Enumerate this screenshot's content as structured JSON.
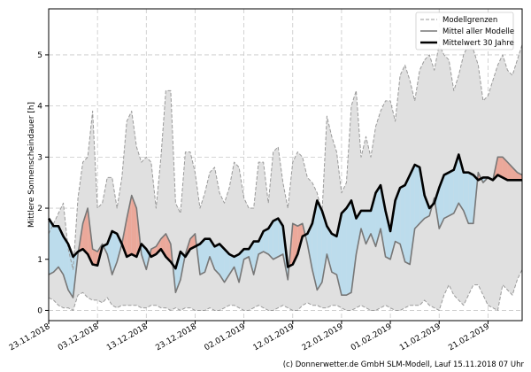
{
  "chart_data": {
    "type": "line",
    "title": "",
    "xlabel": "",
    "ylabel": "Mittlere Sonnenscheindauer [h]",
    "ylim": [
      -0.2,
      5.9
    ],
    "yticks": [
      0,
      1,
      2,
      3,
      4,
      5
    ],
    "grid": true,
    "legend_position": "top-right",
    "x_start_date": "23.11.2018",
    "x_tick_labels": [
      "23.11.2018",
      "03.12.2018",
      "13.12.2018",
      "23.12.2018",
      "02.01.2019",
      "12.01.2019",
      "22.01.2019",
      "01.02.2019",
      "11.02.2019",
      "21.02.2019"
    ],
    "x_tick_days": [
      0,
      10,
      20,
      30,
      40,
      50,
      60,
      70,
      80,
      90
    ],
    "colors": {
      "band_fill": "#e0e0e0",
      "band_line": "#9a9a9a",
      "mean_line": "#777777",
      "clim_line": "#000000",
      "above": "#eba89a",
      "below": "#bcdcec",
      "below_zero_model": "#d9f4fc"
    },
    "legend": [
      {
        "label": "Modellgrenzen",
        "style": "dashed"
      },
      {
        "label": "Mittel aller Modelle",
        "style": "solid-gray"
      },
      {
        "label": "Mittelwert 30 Jahre",
        "style": "solid-black"
      }
    ],
    "series": [
      {
        "name": "Modellgrenzen (oben)",
        "x_days": [
          0,
          1,
          2,
          3,
          4,
          5,
          6,
          7,
          8,
          9,
          10,
          11,
          12,
          13,
          14,
          15,
          16,
          17,
          18,
          19,
          20,
          21,
          22,
          23,
          24,
          25,
          26,
          27,
          28,
          29,
          30,
          31,
          32,
          33,
          34,
          35,
          36,
          37,
          38,
          39,
          40,
          41,
          42,
          43,
          44,
          45,
          46,
          47,
          48,
          49,
          50,
          51,
          52,
          53,
          54,
          55,
          56,
          57,
          58,
          59,
          60,
          61,
          62,
          63,
          64,
          65,
          66,
          67,
          68,
          69,
          70,
          71,
          72,
          73,
          74,
          75,
          76,
          77,
          78,
          79,
          80,
          81,
          82,
          83,
          84,
          85,
          86,
          87,
          88,
          89,
          90,
          91,
          92,
          93,
          94,
          95,
          96,
          97
        ],
        "values": [
          1.5,
          1.7,
          1.9,
          2.1,
          1.2,
          0.8,
          2.2,
          2.9,
          3.0,
          3.9,
          2.0,
          2.1,
          2.6,
          2.6,
          2.0,
          2.6,
          3.7,
          3.9,
          3.2,
          2.9,
          3.0,
          2.9,
          2.0,
          3.0,
          4.3,
          4.3,
          2.1,
          1.9,
          3.1,
          3.1,
          2.7,
          2.0,
          2.3,
          2.7,
          2.8,
          2.3,
          2.1,
          2.4,
          2.9,
          2.8,
          2.2,
          2.0,
          2.0,
          2.9,
          2.9,
          2.1,
          3.1,
          3.2,
          2.5,
          2.0,
          2.9,
          3.1,
          3.0,
          2.6,
          2.5,
          2.3,
          1.9,
          3.8,
          3.4,
          3.1,
          2.3,
          2.5,
          4.0,
          4.3,
          3.0,
          3.4,
          3.0,
          3.6,
          3.9,
          4.1,
          4.1,
          3.7,
          4.6,
          4.8,
          4.5,
          4.1,
          4.7,
          4.9,
          5.0,
          4.7,
          5.2,
          5.0,
          4.9,
          4.3,
          4.6,
          5.0,
          5.2,
          5.1,
          4.8,
          4.1,
          4.2,
          4.5,
          4.8,
          5.0,
          4.7,
          4.6,
          4.9,
          5.2
        ]
      },
      {
        "name": "Modellgrenzen (unten)",
        "x_days": [
          0,
          1,
          2,
          3,
          4,
          5,
          6,
          7,
          8,
          9,
          10,
          11,
          12,
          13,
          14,
          15,
          16,
          17,
          18,
          19,
          20,
          21,
          22,
          23,
          24,
          25,
          26,
          27,
          28,
          29,
          30,
          31,
          32,
          33,
          34,
          35,
          36,
          37,
          38,
          39,
          40,
          41,
          42,
          43,
          44,
          45,
          46,
          47,
          48,
          49,
          50,
          51,
          52,
          53,
          54,
          55,
          56,
          57,
          58,
          59,
          60,
          61,
          62,
          63,
          64,
          65,
          66,
          67,
          68,
          69,
          70,
          71,
          72,
          73,
          74,
          75,
          76,
          77,
          78,
          79,
          80,
          81,
          82,
          83,
          84,
          85,
          86,
          87,
          88,
          89,
          90,
          91,
          92,
          93,
          94,
          95,
          96,
          97
        ],
        "values": [
          0.25,
          0.2,
          0.1,
          0.05,
          0.05,
          0.0,
          0.3,
          0.35,
          0.25,
          0.2,
          0.2,
          0.15,
          0.25,
          0.1,
          0.05,
          0.1,
          0.1,
          0.1,
          0.1,
          0.05,
          0.05,
          0.1,
          0.1,
          0.05,
          0.05,
          0.0,
          0.05,
          0.0,
          0.05,
          0.05,
          0.0,
          0.0,
          0.0,
          0.05,
          0.0,
          0.0,
          0.05,
          0.1,
          0.1,
          0.05,
          0.0,
          0.0,
          0.05,
          0.1,
          0.05,
          0.0,
          0.0,
          0.05,
          0.1,
          0.05,
          0.0,
          0.0,
          0.1,
          0.15,
          0.1,
          0.1,
          0.05,
          0.05,
          0.1,
          0.1,
          0.05,
          0.0,
          0.0,
          0.05,
          0.1,
          0.05,
          0.0,
          0.0,
          0.05,
          0.1,
          0.05,
          0.0,
          0.0,
          0.05,
          0.1,
          0.1,
          0.1,
          0.2,
          0.1,
          0.05,
          0.0,
          0.3,
          0.5,
          0.3,
          0.2,
          0.1,
          0.3,
          0.5,
          0.5,
          0.3,
          0.1,
          0.05,
          0.0,
          0.5,
          0.4,
          0.3,
          0.6,
          0.8
        ]
      },
      {
        "name": "Mittel aller Modelle",
        "x_days": [
          0,
          1,
          2,
          3,
          4,
          5,
          6,
          7,
          8,
          9,
          10,
          11,
          12,
          13,
          14,
          15,
          16,
          17,
          18,
          19,
          20,
          21,
          22,
          23,
          24,
          25,
          26,
          27,
          28,
          29,
          30,
          31,
          32,
          33,
          34,
          35,
          36,
          37,
          38,
          39,
          40,
          41,
          42,
          43,
          44,
          45,
          46,
          47,
          48,
          49,
          50,
          51,
          52,
          53,
          54,
          55,
          56,
          57,
          58,
          59,
          60,
          61,
          62,
          63,
          64,
          65,
          66,
          67,
          68,
          69,
          70,
          71,
          72,
          73,
          74,
          75,
          76,
          77,
          78,
          79,
          80,
          81,
          82,
          83,
          84,
          85,
          86,
          87,
          88,
          89,
          90,
          91,
          92,
          93,
          94,
          95,
          96,
          97
        ],
        "values": [
          0.7,
          0.75,
          0.85,
          0.7,
          0.4,
          0.25,
          1.1,
          1.7,
          2.0,
          1.2,
          1.15,
          1.3,
          1.1,
          0.7,
          0.95,
          1.3,
          1.8,
          2.25,
          2.0,
          1.1,
          0.8,
          1.2,
          1.25,
          1.4,
          1.5,
          1.3,
          0.35,
          0.6,
          1.1,
          1.4,
          1.5,
          0.7,
          0.75,
          1.05,
          0.8,
          0.7,
          0.55,
          0.7,
          0.85,
          0.55,
          1.0,
          1.05,
          0.7,
          1.1,
          1.15,
          1.1,
          1.0,
          1.05,
          1.1,
          0.6,
          1.7,
          1.65,
          1.7,
          1.3,
          0.8,
          0.4,
          0.55,
          1.1,
          0.75,
          0.7,
          0.3,
          0.3,
          0.35,
          1.1,
          1.6,
          1.3,
          1.5,
          1.25,
          1.6,
          1.05,
          1.0,
          1.35,
          1.3,
          0.95,
          0.9,
          1.6,
          1.7,
          1.8,
          1.85,
          2.2,
          1.6,
          1.8,
          1.85,
          1.9,
          2.1,
          1.95,
          1.7,
          1.7,
          2.7,
          2.5,
          2.6,
          2.55,
          3.0,
          3.0,
          2.9,
          2.8,
          2.7,
          2.65
        ]
      },
      {
        "name": "Mittelwert 30 Jahre",
        "x_days": [
          0,
          1,
          2,
          3,
          4,
          5,
          6,
          7,
          8,
          9,
          10,
          11,
          12,
          13,
          14,
          15,
          16,
          17,
          18,
          19,
          20,
          21,
          22,
          23,
          24,
          25,
          26,
          27,
          28,
          29,
          30,
          31,
          32,
          33,
          34,
          35,
          36,
          37,
          38,
          39,
          40,
          41,
          42,
          43,
          44,
          45,
          46,
          47,
          48,
          49,
          50,
          51,
          52,
          53,
          54,
          55,
          56,
          57,
          58,
          59,
          60,
          61,
          62,
          63,
          64,
          65,
          66,
          67,
          68,
          69,
          70,
          71,
          72,
          73,
          74,
          75,
          76,
          77,
          78,
          79,
          80,
          81,
          82,
          83,
          84,
          85,
          86,
          87,
          88,
          89,
          90,
          91,
          92,
          93,
          94,
          95,
          96,
          97
        ],
        "values": [
          1.8,
          1.65,
          1.65,
          1.45,
          1.3,
          1.05,
          1.15,
          1.2,
          1.1,
          0.9,
          0.88,
          1.25,
          1.3,
          1.55,
          1.5,
          1.3,
          1.05,
          1.1,
          1.05,
          1.3,
          1.2,
          1.05,
          1.1,
          1.2,
          1.05,
          0.95,
          0.82,
          1.15,
          1.05,
          1.2,
          1.25,
          1.3,
          1.4,
          1.4,
          1.25,
          1.3,
          1.2,
          1.1,
          1.05,
          1.1,
          1.2,
          1.2,
          1.35,
          1.35,
          1.55,
          1.6,
          1.75,
          1.8,
          1.65,
          0.85,
          0.9,
          1.1,
          1.45,
          1.5,
          1.7,
          2.15,
          1.95,
          1.65,
          1.5,
          1.45,
          1.9,
          2.0,
          2.15,
          1.8,
          1.95,
          1.95,
          1.95,
          2.3,
          2.45,
          1.95,
          1.55,
          2.15,
          2.4,
          2.45,
          2.65,
          2.85,
          2.8,
          2.25,
          2.0,
          2.1,
          2.4,
          2.65,
          2.7,
          2.75,
          3.05,
          2.7,
          2.7,
          2.65,
          2.55,
          2.6,
          2.6,
          2.55,
          2.65,
          2.6,
          2.55,
          2.55,
          2.55,
          2.55
        ]
      }
    ],
    "credit": "(c) Donnerwetter.de GmbH SLM-Modell, Lauf 15.11.2018 07 Uhr"
  }
}
